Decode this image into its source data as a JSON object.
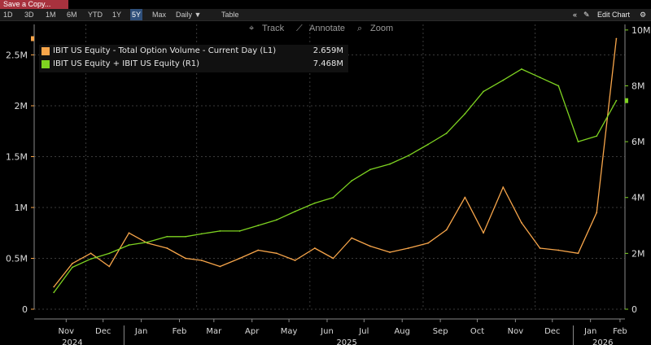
{
  "toolbar": {
    "save_label": "Save a Copy...",
    "ranges": [
      "1D",
      "3D",
      "1M",
      "6M",
      "YTD",
      "1Y",
      "5Y",
      "Max"
    ],
    "active_range": "5Y",
    "frequency": "Daily ▼",
    "table_label": "Table",
    "collapse_label": "«",
    "edit_chart_label": "Edit Chart"
  },
  "tools": {
    "track": "Track",
    "annotate": "Annotate",
    "zoom": "Zoom"
  },
  "legend": [
    {
      "label": "IBIT US Equity - Total Option Volume - Current Day (L1)",
      "value": "2.659M",
      "color": "#f7a54a"
    },
    {
      "label": "IBIT US Equity + IBIT US Equity (R1)",
      "value": "7.468M",
      "color": "#7ed321"
    }
  ],
  "colors": {
    "option_volume": "#f7a54a",
    "ibit": "#7ed321",
    "background": "#000000",
    "grid": "#3a3a3a"
  },
  "chart_data": {
    "type": "line",
    "x_labels": [
      "Nov",
      "Dec",
      "Jan",
      "Feb",
      "Mar",
      "Apr",
      "May",
      "Jun",
      "Jul",
      "Aug",
      "Sep",
      "Oct",
      "Nov",
      "Dec",
      "Jan",
      "Feb"
    ],
    "year_labels": [
      "2024",
      "2025",
      "2026"
    ],
    "left_axis": {
      "ticks": [
        "0",
        "0.5M",
        "1M",
        "1.5M",
        "2M",
        "2.5M"
      ],
      "range": [
        0,
        2.8
      ]
    },
    "right_axis": {
      "ticks": [
        "0",
        "2M",
        "4M",
        "6M",
        "8M",
        "10M"
      ],
      "range": [
        0,
        10.2
      ]
    },
    "series": [
      {
        "name": "IBIT US Equity - Total Option Volume - Current Day (L1)",
        "axis": "left",
        "x": [
          "2024-11-05",
          "2024-11-20",
          "2024-12-05",
          "2024-12-20",
          "2025-01-05",
          "2025-01-20",
          "2025-02-05",
          "2025-02-20",
          "2025-03-05",
          "2025-03-20",
          "2025-04-05",
          "2025-04-20",
          "2025-05-05",
          "2025-05-20",
          "2025-06-05",
          "2025-06-20",
          "2025-07-05",
          "2025-07-20",
          "2025-08-05",
          "2025-08-20",
          "2025-09-05",
          "2025-09-20",
          "2025-10-05",
          "2025-10-20",
          "2025-11-05",
          "2025-11-20",
          "2025-12-05",
          "2025-12-20",
          "2026-01-05",
          "2026-01-20",
          "2026-02-05"
        ],
        "values": [
          0.22,
          0.45,
          0.55,
          0.42,
          0.75,
          0.65,
          0.6,
          0.5,
          0.48,
          0.42,
          0.5,
          0.58,
          0.55,
          0.48,
          0.6,
          0.5,
          0.7,
          0.62,
          0.56,
          0.6,
          0.65,
          0.78,
          1.1,
          0.75,
          1.2,
          0.85,
          0.6,
          0.58,
          0.55,
          0.95,
          2.66
        ]
      },
      {
        "name": "IBIT US Equity + IBIT US Equity (R1)",
        "axis": "right",
        "x": [
          "2024-11-05",
          "2024-11-20",
          "2024-12-05",
          "2024-12-20",
          "2025-01-05",
          "2025-01-20",
          "2025-02-05",
          "2025-02-20",
          "2025-03-05",
          "2025-03-20",
          "2025-04-05",
          "2025-04-20",
          "2025-05-05",
          "2025-05-20",
          "2025-06-05",
          "2025-06-20",
          "2025-07-05",
          "2025-07-20",
          "2025-08-05",
          "2025-08-20",
          "2025-09-05",
          "2025-09-20",
          "2025-10-05",
          "2025-10-20",
          "2025-11-05",
          "2025-11-20",
          "2025-12-05",
          "2025-12-20",
          "2026-01-05",
          "2026-01-20",
          "2026-02-05"
        ],
        "values": [
          0.6,
          1.5,
          1.8,
          2.0,
          2.3,
          2.4,
          2.6,
          2.6,
          2.7,
          2.8,
          2.8,
          3.0,
          3.2,
          3.5,
          3.8,
          4.0,
          4.6,
          5.0,
          5.2,
          5.5,
          5.9,
          6.3,
          7.0,
          7.8,
          8.2,
          8.6,
          8.3,
          8.0,
          6.0,
          6.2,
          7.47
        ]
      }
    ],
    "grid": true,
    "legend_position": "top-left"
  }
}
